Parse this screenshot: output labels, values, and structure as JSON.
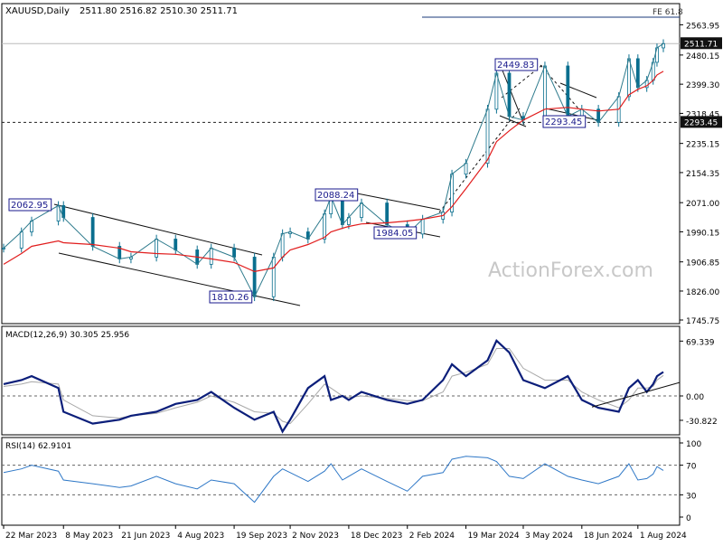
{
  "header": {
    "symbol": "XAUUSD,Daily",
    "ohlc": "2511.80 2516.82 2510.30 2511.71"
  },
  "watermark": "ActionForex.com",
  "colors": {
    "price": "#2d7a8c",
    "candle": "#0a6f8f",
    "ema": "#e11d1d",
    "macd": "#0b1e7a",
    "signal": "#a8a8a8",
    "rsi": "#2f78c7",
    "border": "#000000",
    "label_text": "#1a1a8c"
  },
  "chart_data": [
    {
      "type": "line",
      "name": "price",
      "ylim": [
        1745.75,
        2565
      ],
      "y_ticks": [
        "2563.95",
        "2480.15",
        "2399.30",
        "2318.45",
        "2235.15",
        "2154.35",
        "2071.00",
        "1990.15",
        "1906.85",
        "1826.00",
        "1745.75"
      ],
      "current_price_label": "2511.71",
      "level_label": "2293.45",
      "fe_label": "FE 61.8",
      "fe_level": 2570,
      "x": [
        "2023-03-22",
        "2023-04-05",
        "2023-04-13",
        "2023-05-04",
        "2023-05-08",
        "2023-05-31",
        "2023-06-21",
        "2023-06-30",
        "2023-07-20",
        "2023-08-04",
        "2023-08-21",
        "2023-09-01",
        "2023-09-19",
        "2023-10-05",
        "2023-10-20",
        "2023-10-27",
        "2023-11-02",
        "2023-11-16",
        "2023-11-29",
        "2023-12-04",
        "2023-12-13",
        "2023-12-18",
        "2023-12-28",
        "2024-01-17",
        "2024-02-02",
        "2024-02-14",
        "2024-03-01",
        "2024-03-08",
        "2024-03-19",
        "2024-04-05",
        "2024-04-12",
        "2024-04-22",
        "2024-05-03",
        "2024-05-20",
        "2024-06-07",
        "2024-06-18",
        "2024-07-01",
        "2024-07-17",
        "2024-07-25",
        "2024-08-01",
        "2024-08-08",
        "2024-08-13",
        "2024-08-16",
        "2024-08-21"
      ],
      "series": [
        {
          "values": [
            1945,
            1990,
            2020,
            2062.95,
            2030,
            1950,
            1915,
            1920,
            1970,
            1940,
            1900,
            1945,
            1920,
            1810.26,
            1920,
            1985,
            1990,
            1970,
            2040,
            2088.24,
            2010,
            2030,
            2070,
            2010,
            1984.05,
            2025,
            2045,
            2150,
            2180,
            2330,
            2430,
            2310,
            2300,
            2449.83,
            2310,
            2330,
            2293.45,
            2365,
            2470,
            2390,
            2410,
            2460,
            2500,
            2511.71
          ]
        },
        {
          "values": [
            1900,
            1930,
            1950,
            1965,
            1960,
            1955,
            1945,
            1935,
            1930,
            1928,
            1920,
            1915,
            1905,
            1880,
            1890,
            1920,
            1940,
            1955,
            1975,
            1990,
            2000,
            2005,
            2012,
            2015,
            2020,
            2025,
            2035,
            2060,
            2110,
            2190,
            2240,
            2270,
            2300,
            2330,
            2335,
            2330,
            2325,
            2330,
            2370,
            2385,
            2395,
            2410,
            2425,
            2435
          ]
        }
      ],
      "annotations": [
        "2062.95",
        "2088.24",
        "1984.05",
        "2449.83",
        "2293.45",
        "1810.26"
      ]
    },
    {
      "type": "line",
      "name": "MACD(12,26,9) 30.305 25.956",
      "ylim": [
        -40,
        80
      ],
      "y_ticks": [
        "69.339",
        "0.00",
        "-30.822"
      ],
      "y_ticks_values": [
        69.339,
        0,
        -30.822
      ],
      "series": [
        {
          "values": [
            15,
            20,
            25,
            10,
            -20,
            -35,
            -30,
            -25,
            -20,
            -10,
            -5,
            5,
            -15,
            -30,
            -20,
            -45,
            -30,
            10,
            25,
            -5,
            0,
            -5,
            5,
            -5,
            -10,
            -5,
            20,
            40,
            25,
            45,
            70,
            55,
            20,
            10,
            25,
            -5,
            -15,
            -20,
            10,
            20,
            5,
            15,
            25,
            30.305
          ]
        },
        {
          "values": [
            12,
            15,
            18,
            15,
            -5,
            -25,
            -28,
            -25,
            -22,
            -15,
            -8,
            0,
            -8,
            -20,
            -22,
            -32,
            -35,
            -10,
            15,
            10,
            0,
            -2,
            0,
            -3,
            -6,
            -6,
            5,
            25,
            30,
            40,
            60,
            60,
            35,
            20,
            20,
            5,
            -5,
            -15,
            -5,
            10,
            10,
            12,
            20,
            25.956
          ]
        }
      ]
    },
    {
      "type": "line",
      "name": "RSI(14) 62.9101",
      "ylim": [
        0,
        100
      ],
      "y_ticks": [
        "100",
        "70",
        "30",
        "0"
      ],
      "y_ticks_values": [
        100,
        70,
        30,
        0
      ],
      "series": [
        {
          "values": [
            60,
            65,
            70,
            62,
            50,
            45,
            40,
            42,
            55,
            45,
            38,
            50,
            45,
            20,
            55,
            65,
            60,
            48,
            62,
            72,
            50,
            55,
            65,
            48,
            35,
            55,
            60,
            78,
            82,
            80,
            75,
            55,
            52,
            72,
            55,
            50,
            45,
            55,
            72,
            50,
            52,
            58,
            68,
            62.9101
          ]
        }
      ]
    }
  ],
  "x_tick_labels": [
    "22 Mar 2023",
    "8 May 2023",
    "21 Jun 2023",
    "4 Aug 2023",
    "19 Sep 2023",
    "2 Nov 2023",
    "18 Dec 2023",
    "2 Feb 2024",
    "19 Mar 2024",
    "3 May 2024",
    "18 Jun 2024",
    "1 Aug 2024"
  ],
  "x_tick_dates": [
    "2023-03-22",
    "2023-05-08",
    "2023-06-21",
    "2023-08-04",
    "2023-09-19",
    "2023-11-02",
    "2023-12-18",
    "2024-02-02",
    "2024-03-19",
    "2024-05-03",
    "2024-06-18",
    "2024-08-01"
  ]
}
